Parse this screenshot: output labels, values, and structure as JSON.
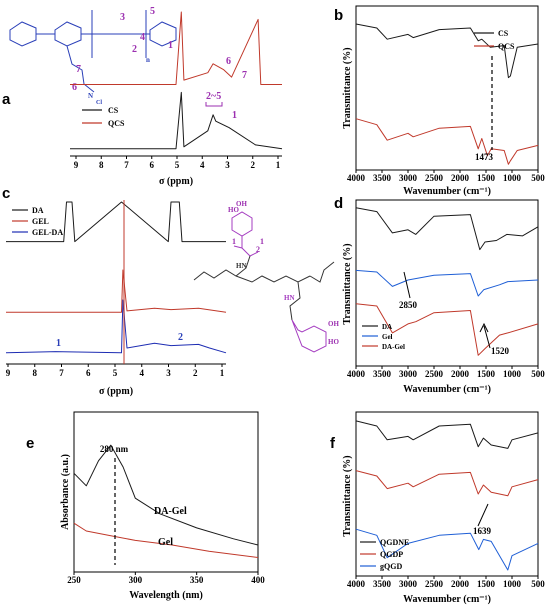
{
  "panels": {
    "a": {
      "letter": "a",
      "xlabel": "σ (ppm)",
      "ticks": [
        "9",
        "8",
        "7",
        "6",
        "5",
        "4",
        "3",
        "2",
        "1"
      ],
      "legend": [
        "CS",
        "QCS"
      ],
      "peaks": [
        "6",
        "7",
        "2~5",
        "1"
      ],
      "structure_labels": [
        "1",
        "2",
        "3",
        "4",
        "5",
        "6",
        "7",
        "n",
        "N",
        "Cl"
      ]
    },
    "b": {
      "letter": "b",
      "xlabel": "Wavenumber (cm⁻¹)",
      "ylabel": "Transmittance (%)",
      "ticks": [
        "4000",
        "3500",
        "3000",
        "2500",
        "2000",
        "1500",
        "1000",
        "500"
      ],
      "legend": [
        "CS",
        "QCS"
      ],
      "annotation": "1473"
    },
    "c": {
      "letter": "c",
      "xlabel": "σ (ppm)",
      "ticks": [
        "9",
        "8",
        "7",
        "6",
        "5",
        "4",
        "3",
        "2",
        "1"
      ],
      "legend": [
        "DA",
        "GEL",
        "GEL-DA"
      ],
      "peaks": [
        "1",
        "2"
      ],
      "structure_labels": [
        "1",
        "2",
        "1",
        "HN",
        "HN",
        "HO",
        "HO",
        "OH",
        "OH"
      ]
    },
    "d": {
      "letter": "d",
      "xlabel": "Wavenumber (cm⁻¹)",
      "ylabel": "Transmittance (%)",
      "ticks": [
        "4000",
        "3500",
        "3000",
        "2500",
        "2000",
        "1500",
        "1000",
        "500"
      ],
      "legend": [
        "DA",
        "Gel",
        "DA-Gel"
      ],
      "annotations": [
        "2850",
        "1520"
      ]
    },
    "e": {
      "letter": "e",
      "xlabel": "Wavelength (nm)",
      "ylabel": "Absorbance (a.u.)",
      "ticks": [
        "250",
        "300",
        "350",
        "400"
      ],
      "annotations": [
        "280 nm",
        "DA-Gel",
        "Gel"
      ]
    },
    "f": {
      "letter": "f",
      "xlabel": "Wavenumber (cm⁻¹)",
      "ylabel": "Transmittance (%)",
      "ticks": [
        "4000",
        "3500",
        "3000",
        "2500",
        "2000",
        "1500",
        "1000",
        "500"
      ],
      "legend": [
        "QGDNE",
        "QGDP",
        "gQGD"
      ],
      "annotation": "1639"
    }
  },
  "colors": {
    "black": "#1a1a1a",
    "red": "#c0392b",
    "blue": "#1f5fd6",
    "navy": "#1e2db3",
    "purple": "#a43cc0"
  },
  "chart_data": [
    {
      "type": "line",
      "panel": "a",
      "xlabel": "σ (ppm)",
      "xlim": [
        9,
        1
      ],
      "x_reversed": true,
      "series": [
        {
          "name": "CS",
          "points": [
            [
              9,
              0.02
            ],
            [
              5.0,
              0.02
            ],
            [
              4.8,
              0.9
            ],
            [
              4.7,
              0.05
            ],
            [
              3.8,
              0.3
            ],
            [
              3.6,
              0.55
            ],
            [
              3.5,
              0.45
            ],
            [
              3.0,
              0.35
            ],
            [
              2.0,
              0.08
            ],
            [
              1,
              0.02
            ]
          ]
        },
        {
          "name": "QCS",
          "points": [
            [
              9,
              0.02
            ],
            [
              5.0,
              0.02
            ],
            [
              4.8,
              1.0
            ],
            [
              4.7,
              0.08
            ],
            [
              3.8,
              0.18
            ],
            [
              3.6,
              0.3
            ],
            [
              3.2,
              0.22
            ],
            [
              2.9,
              0.12
            ],
            [
              1.9,
              0.9
            ],
            [
              1.8,
              0.02
            ],
            [
              1,
              0.02
            ]
          ]
        }
      ]
    },
    {
      "type": "line",
      "panel": "b",
      "xlabel": "Wavenumber (cm⁻¹)",
      "ylabel": "Transmittance (%)",
      "xlim": [
        4000,
        500
      ],
      "x_reversed": true,
      "series": [
        {
          "name": "CS",
          "points": [
            [
              4000,
              0.85
            ],
            [
              3600,
              0.8
            ],
            [
              3400,
              0.66
            ],
            [
              3000,
              0.72
            ],
            [
              2900,
              0.68
            ],
            [
              2400,
              0.78
            ],
            [
              1800,
              0.8
            ],
            [
              1650,
              0.64
            ],
            [
              1580,
              0.66
            ],
            [
              1420,
              0.56
            ],
            [
              1150,
              0.58
            ],
            [
              1070,
              0.18
            ],
            [
              1030,
              0.2
            ],
            [
              900,
              0.56
            ],
            [
              500,
              0.6
            ]
          ]
        },
        {
          "name": "QCS",
          "points": [
            [
              4000,
              0.55
            ],
            [
              3600,
              0.48
            ],
            [
              3400,
              0.3
            ],
            [
              3000,
              0.38
            ],
            [
              2900,
              0.34
            ],
            [
              2400,
              0.44
            ],
            [
              1800,
              0.46
            ],
            [
              1650,
              0.2
            ],
            [
              1580,
              0.32
            ],
            [
              1473,
              0.12
            ],
            [
              1400,
              0.2
            ],
            [
              1150,
              0.18
            ],
            [
              1070,
              0.02
            ],
            [
              1030,
              0.06
            ],
            [
              900,
              0.18
            ],
            [
              500,
              0.24
            ]
          ]
        }
      ]
    },
    {
      "type": "line",
      "panel": "c",
      "xlabel": "σ (ppm)",
      "xlim": [
        9,
        1
      ],
      "x_reversed": true,
      "series": [
        {
          "name": "DA",
          "points": [
            [
              9,
              0.55
            ],
            [
              6.9,
              0.55
            ],
            [
              6.8,
              1.0
            ],
            [
              6.6,
              1.0
            ],
            [
              6.5,
              0.55
            ],
            [
              4.8,
              1.0
            ],
            [
              3.1,
              0.55
            ],
            [
              3.0,
              1.0
            ],
            [
              2.7,
              1.0
            ],
            [
              2.6,
              0.55
            ],
            [
              1,
              0.55
            ]
          ]
        },
        {
          "name": "GEL",
          "points": [
            [
              9,
              0.36
            ],
            [
              4.8,
              0.36
            ],
            [
              4.75,
              1.0
            ],
            [
              4.6,
              0.38
            ],
            [
              3.6,
              0.42
            ],
            [
              3.0,
              0.4
            ],
            [
              2.0,
              0.42
            ],
            [
              1,
              0.36
            ]
          ]
        },
        {
          "name": "GEL-DA",
          "points": [
            [
              9,
              0.12
            ],
            [
              7.2,
              0.14
            ],
            [
              4.8,
              0.12
            ],
            [
              4.75,
              1.0
            ],
            [
              4.6,
              0.2
            ],
            [
              3.6,
              0.28
            ],
            [
              3.0,
              0.24
            ],
            [
              2.0,
              0.26
            ],
            [
              1.6,
              0.2
            ],
            [
              1,
              0.12
            ]
          ]
        }
      ]
    },
    {
      "type": "line",
      "panel": "d",
      "xlabel": "Wavenumber (cm⁻¹)",
      "ylabel": "Transmittance (%)",
      "xlim": [
        4000,
        500
      ],
      "x_reversed": true,
      "series": [
        {
          "name": "DA",
          "points": [
            [
              4000,
              0.95
            ],
            [
              3600,
              0.9
            ],
            [
              3300,
              0.62
            ],
            [
              3000,
              0.66
            ],
            [
              2850,
              0.6
            ],
            [
              2500,
              0.84
            ],
            [
              1800,
              0.86
            ],
            [
              1620,
              0.4
            ],
            [
              1520,
              0.5
            ],
            [
              1300,
              0.52
            ],
            [
              1100,
              0.6
            ],
            [
              800,
              0.58
            ],
            [
              500,
              0.7
            ]
          ]
        },
        {
          "name": "Gel",
          "points": [
            [
              4000,
              0.62
            ],
            [
              3600,
              0.6
            ],
            [
              3300,
              0.42
            ],
            [
              3000,
              0.5
            ],
            [
              2500,
              0.56
            ],
            [
              1800,
              0.58
            ],
            [
              1650,
              0.3
            ],
            [
              1540,
              0.38
            ],
            [
              1240,
              0.44
            ],
            [
              1080,
              0.48
            ],
            [
              500,
              0.5
            ]
          ]
        },
        {
          "name": "DA-Gel",
          "points": [
            [
              4000,
              0.52
            ],
            [
              3600,
              0.5
            ],
            [
              3300,
              0.26
            ],
            [
              3000,
              0.34
            ],
            [
              2850,
              0.36
            ],
            [
              2500,
              0.44
            ],
            [
              1800,
              0.46
            ],
            [
              1650,
              0.06
            ],
            [
              1520,
              0.12
            ],
            [
              1240,
              0.24
            ],
            [
              1080,
              0.26
            ],
            [
              500,
              0.34
            ]
          ]
        }
      ]
    },
    {
      "type": "line",
      "panel": "e",
      "xlabel": "Wavelength (nm)",
      "ylabel": "Absorbance (a.u.)",
      "xlim": [
        250,
        400
      ],
      "series": [
        {
          "name": "DA-Gel",
          "points": [
            [
              250,
              0.62
            ],
            [
              260,
              0.54
            ],
            [
              270,
              0.7
            ],
            [
              280,
              0.8
            ],
            [
              290,
              0.66
            ],
            [
              300,
              0.46
            ],
            [
              320,
              0.36
            ],
            [
              350,
              0.27
            ],
            [
              380,
              0.2
            ],
            [
              400,
              0.16
            ]
          ]
        },
        {
          "name": "Gel",
          "points": [
            [
              250,
              0.3
            ],
            [
              260,
              0.25
            ],
            [
              280,
              0.22
            ],
            [
              300,
              0.19
            ],
            [
              330,
              0.16
            ],
            [
              360,
              0.12
            ],
            [
              400,
              0.08
            ]
          ]
        }
      ]
    },
    {
      "type": "line",
      "panel": "f",
      "xlabel": "Wavenumber (cm⁻¹)",
      "ylabel": "Transmittance (%)",
      "xlim": [
        4000,
        500
      ],
      "x_reversed": true,
      "series": [
        {
          "name": "QGDNE",
          "points": [
            [
              4000,
              0.92
            ],
            [
              3600,
              0.86
            ],
            [
              3400,
              0.7
            ],
            [
              3000,
              0.74
            ],
            [
              2900,
              0.7
            ],
            [
              2400,
              0.86
            ],
            [
              1800,
              0.88
            ],
            [
              1650,
              0.62
            ],
            [
              1550,
              0.72
            ],
            [
              1400,
              0.64
            ],
            [
              1080,
              0.6
            ],
            [
              1000,
              0.7
            ],
            [
              500,
              0.78
            ]
          ]
        },
        {
          "name": "QGDP",
          "points": [
            [
              4000,
              0.66
            ],
            [
              3600,
              0.6
            ],
            [
              3400,
              0.46
            ],
            [
              3000,
              0.52
            ],
            [
              2900,
              0.48
            ],
            [
              2400,
              0.62
            ],
            [
              1800,
              0.64
            ],
            [
              1650,
              0.4
            ],
            [
              1550,
              0.5
            ],
            [
              1400,
              0.42
            ],
            [
              1080,
              0.38
            ],
            [
              1000,
              0.48
            ],
            [
              500,
              0.56
            ]
          ]
        },
        {
          "name": "gQGD",
          "points": [
            [
              4000,
              0.42
            ],
            [
              3600,
              0.36
            ],
            [
              3400,
              0.14
            ],
            [
              3000,
              0.28
            ],
            [
              2400,
              0.36
            ],
            [
              1800,
              0.38
            ],
            [
              1639,
              0.22
            ],
            [
              1550,
              0.32
            ],
            [
              1400,
              0.3
            ],
            [
              1080,
              0.02
            ],
            [
              1000,
              0.16
            ],
            [
              500,
              0.28
            ]
          ]
        }
      ]
    }
  ]
}
